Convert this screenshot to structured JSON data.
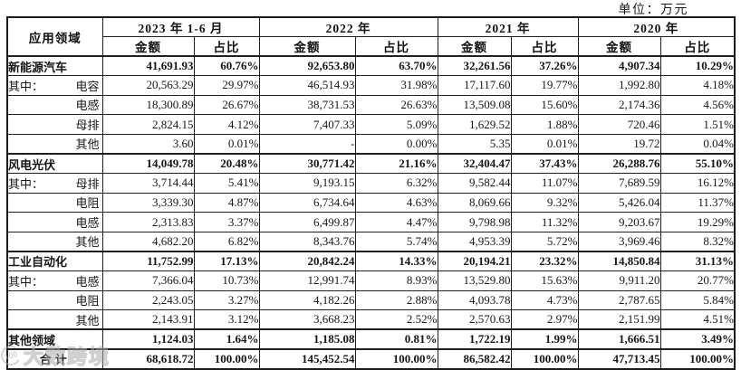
{
  "unit_label": "单位：万元",
  "watermark": {
    "icon": "100",
    "text": "大数跨境"
  },
  "table": {
    "corner_header": "应用领域",
    "col_groups": [
      {
        "label": "2023 年 1-6 月",
        "sub": [
          "金额",
          "占比"
        ]
      },
      {
        "label": "2022 年",
        "sub": [
          "金额",
          "占比"
        ]
      },
      {
        "label": "2021 年",
        "sub": [
          "金额",
          "占比"
        ]
      },
      {
        "label": "2020 年",
        "sub": [
          "金额",
          "占比"
        ]
      }
    ],
    "rows": [
      {
        "prefix": "",
        "label": "新能源汽车",
        "bold": true,
        "align": "left",
        "values": [
          "41,691.93",
          "60.76%",
          "92,653.80",
          "63.70%",
          "32,261.56",
          "37.26%",
          "4,907.34",
          "10.29%"
        ]
      },
      {
        "prefix": "其中：",
        "label": "电容",
        "bold": false,
        "align": "right",
        "values": [
          "20,563.29",
          "29.97%",
          "46,514.93",
          "31.98%",
          "17,117.60",
          "19.77%",
          "1,992.80",
          "4.18%"
        ]
      },
      {
        "prefix": "",
        "label": "电感",
        "bold": false,
        "align": "right",
        "values": [
          "18,300.89",
          "26.67%",
          "38,731.53",
          "26.63%",
          "13,509.08",
          "15.60%",
          "2,174.36",
          "4.56%"
        ]
      },
      {
        "prefix": "",
        "label": "母排",
        "bold": false,
        "align": "right",
        "values": [
          "2,824.15",
          "4.12%",
          "7,407.33",
          "5.09%",
          "1,629.52",
          "1.88%",
          "720.46",
          "1.51%"
        ]
      },
      {
        "prefix": "",
        "label": "其他",
        "bold": false,
        "align": "right",
        "values": [
          "3.60",
          "0.01%",
          "-",
          "0.00%",
          "5.35",
          "0.01%",
          "19.72",
          "0.04%"
        ]
      },
      {
        "prefix": "",
        "label": "风电光伏",
        "bold": true,
        "align": "left",
        "values": [
          "14,049.78",
          "20.48%",
          "30,771.42",
          "21.16%",
          "32,404.47",
          "37.43%",
          "26,288.76",
          "55.10%"
        ]
      },
      {
        "prefix": "其中：",
        "label": "母排",
        "bold": false,
        "align": "right",
        "values": [
          "3,714.44",
          "5.41%",
          "9,193.15",
          "6.32%",
          "9,582.44",
          "11.07%",
          "7,689.59",
          "16.12%"
        ]
      },
      {
        "prefix": "",
        "label": "电阻",
        "bold": false,
        "align": "right",
        "values": [
          "3,339.30",
          "4.87%",
          "6,734.64",
          "4.63%",
          "8,069.66",
          "9.32%",
          "5,426.04",
          "11.37%"
        ]
      },
      {
        "prefix": "",
        "label": "电感",
        "bold": false,
        "align": "right",
        "values": [
          "2,313.83",
          "3.37%",
          "6,499.87",
          "4.47%",
          "9,798.98",
          "11.32%",
          "9,203.67",
          "19.29%"
        ]
      },
      {
        "prefix": "",
        "label": "其他",
        "bold": false,
        "align": "right",
        "values": [
          "4,682.20",
          "6.82%",
          "8,343.76",
          "5.74%",
          "4,953.39",
          "5.72%",
          "3,969.46",
          "8.32%"
        ]
      },
      {
        "prefix": "",
        "label": "工业自动化",
        "bold": true,
        "align": "left",
        "values": [
          "11,752.99",
          "17.13%",
          "20,842.24",
          "14.33%",
          "20,194.21",
          "23.32%",
          "14,850.84",
          "31.13%"
        ]
      },
      {
        "prefix": "其中：",
        "label": "电感",
        "bold": false,
        "align": "right",
        "values": [
          "7,366.04",
          "10.73%",
          "12,991.74",
          "8.93%",
          "13,529.80",
          "15.63%",
          "9,911.20",
          "20.77%"
        ]
      },
      {
        "prefix": "",
        "label": "电阻",
        "bold": false,
        "align": "right",
        "values": [
          "2,243.05",
          "3.27%",
          "4,182.26",
          "2.88%",
          "4,093.78",
          "4.73%",
          "2,787.65",
          "5.84%"
        ]
      },
      {
        "prefix": "",
        "label": "其他",
        "bold": false,
        "align": "right",
        "values": [
          "2,143.91",
          "3.12%",
          "3,668.23",
          "2.52%",
          "2,570.63",
          "2.97%",
          "2,151.99",
          "4.51%"
        ]
      },
      {
        "prefix": "",
        "label": "其他领域",
        "bold": true,
        "align": "left",
        "values": [
          "1,124.03",
          "1.64%",
          "1,185.08",
          "0.81%",
          "1,722.19",
          "1.99%",
          "1,666.51",
          "3.49%"
        ]
      },
      {
        "prefix": "",
        "label": "合计",
        "bold": true,
        "align": "center",
        "values": [
          "68,618.72",
          "100.00%",
          "145,452.54",
          "100.00%",
          "86,582.42",
          "100.00%",
          "47,713.45",
          "100.00%"
        ]
      }
    ]
  }
}
